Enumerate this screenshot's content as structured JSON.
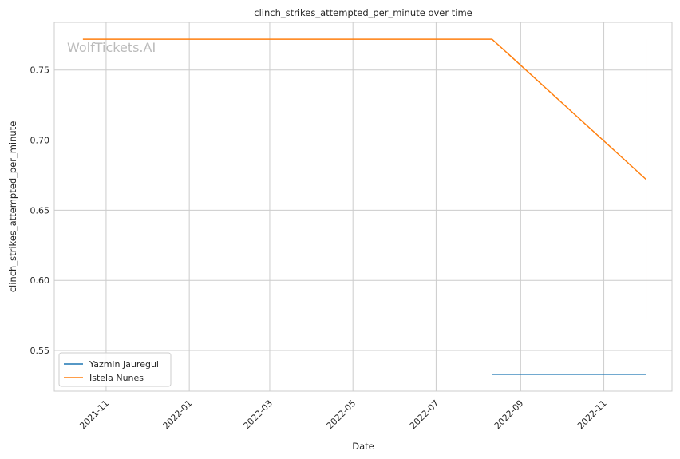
{
  "chart_data": {
    "type": "line",
    "title": "clinch_strikes_attempted_per_minute over time",
    "xlabel": "Date",
    "ylabel": "clinch_strikes_attempted_per_minute",
    "xlim": [
      "2021-09-24",
      "2022-12-21"
    ],
    "ylim": [
      0.521,
      0.784
    ],
    "grid": true,
    "legend_placement": "lower-left",
    "watermark": "WolfTickets.AI",
    "x_ticks": [
      "2021-11",
      "2022-01",
      "2022-03",
      "2022-05",
      "2022-07",
      "2022-09",
      "2022-11"
    ],
    "x_tick_dates": [
      "2021-11-01",
      "2022-01-01",
      "2022-03-01",
      "2022-05-01",
      "2022-07-01",
      "2022-09-01",
      "2022-11-01"
    ],
    "y_ticks": [
      "0.55",
      "0.60",
      "0.65",
      "0.70",
      "0.75"
    ],
    "y_tick_values": [
      0.55,
      0.6,
      0.65,
      0.7,
      0.75
    ],
    "series": [
      {
        "name": "Yazmin Jauregui",
        "color": "#1f77b4",
        "points": [
          {
            "x": "2022-08-11",
            "y": 0.533
          },
          {
            "x": "2022-12-02",
            "y": 0.533
          }
        ]
      },
      {
        "name": "Istela Nunes",
        "color": "#ff7f0e",
        "points": [
          {
            "x": "2021-10-15",
            "y": 0.772
          },
          {
            "x": "2022-08-11",
            "y": 0.772
          },
          {
            "x": "2022-12-02",
            "y": 0.672
          }
        ],
        "band": {
          "x": "2022-12-02",
          "low": 0.572,
          "high": 0.772
        }
      }
    ]
  }
}
